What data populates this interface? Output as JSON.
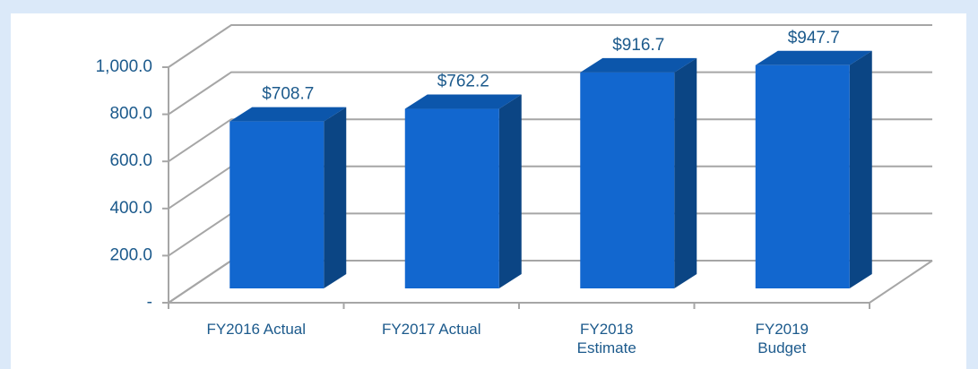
{
  "chart_data": {
    "type": "bar3d",
    "categories": [
      "FY2016 Actual",
      "FY2017 Actual",
      "FY2018 Estimate",
      "FY2019 Budget"
    ],
    "values": [
      708.7,
      762.2,
      916.7,
      947.7
    ],
    "value_labels": [
      "$708.7",
      "$762.2",
      "$916.7",
      "$947.7"
    ],
    "color": "#1267cf",
    "ylim": [
      0,
      1000
    ],
    "yticks": [
      {
        "value": 0,
        "label": "-"
      },
      {
        "value": 200,
        "label": "200.0"
      },
      {
        "value": 400,
        "label": "400.0"
      },
      {
        "value": 600,
        "label": "600.0"
      },
      {
        "value": 800,
        "label": "800.0"
      },
      {
        "value": 1000,
        "label": "1,000.0"
      }
    ],
    "grid": true
  }
}
